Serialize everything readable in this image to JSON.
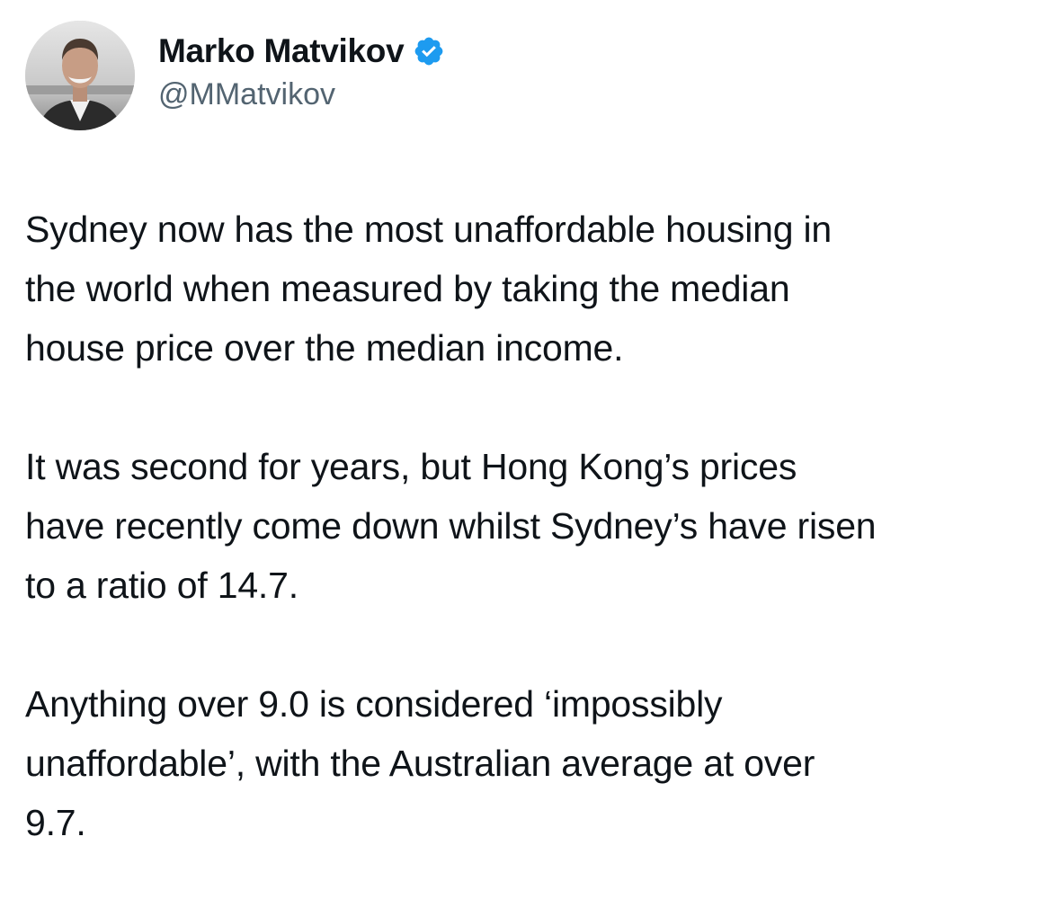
{
  "tweet": {
    "author": {
      "display_name": "Marko Matvikov",
      "handle": "@MMatvikov",
      "verified": true,
      "verified_color": "#1d9bf0"
    },
    "paragraphs": [
      {
        "lines": [
          "Sydney now has the most unaffordable housing in",
          "the world when measured by taking the median",
          "house price over the median income."
        ]
      },
      {
        "lines": [
          "It was second for years, but Hong Kong’s prices",
          "have recently come down whilst Sydney’s have risen",
          "to a ratio of 14.7."
        ]
      },
      {
        "lines": [
          "Anything over 9.0 is considered ‘impossibly",
          "unaffordable’, with the Australian average at over",
          "9.7."
        ]
      }
    ]
  }
}
